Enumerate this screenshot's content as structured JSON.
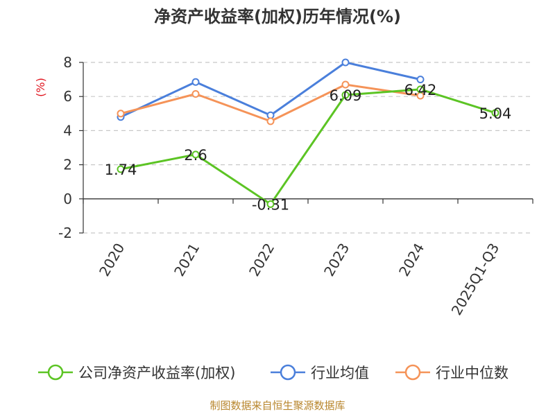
{
  "chart_data": {
    "type": "line",
    "title": "净资产收益率(加权)历年情况(%)",
    "ylabel": "(%)",
    "xlabel": "",
    "ylim": [
      -2,
      8
    ],
    "yticks": [
      8,
      6,
      4,
      2,
      0,
      -2
    ],
    "categories": [
      "2020",
      "2021",
      "2022",
      "2023",
      "2024",
      "2025Q1-Q3"
    ],
    "series": [
      {
        "name": "公司净资产收益率(加权)",
        "color": "#5cc424",
        "values": [
          1.74,
          2.6,
          -0.31,
          6.09,
          6.42,
          5.04
        ],
        "labels": [
          "1.74",
          "2.6",
          "-0.31",
          "6.09",
          "6.42",
          "5.04"
        ]
      },
      {
        "name": "行业均值",
        "color": "#4a7fdb",
        "values": [
          4.8,
          6.85,
          4.9,
          8.0,
          7.0,
          null
        ]
      },
      {
        "name": "行业中位数",
        "color": "#f59358",
        "values": [
          5.0,
          6.15,
          4.55,
          6.7,
          6.05,
          null
        ]
      }
    ],
    "grid": true,
    "legend_position": "bottom",
    "source": "制图数据来自恒生聚源数据库"
  }
}
